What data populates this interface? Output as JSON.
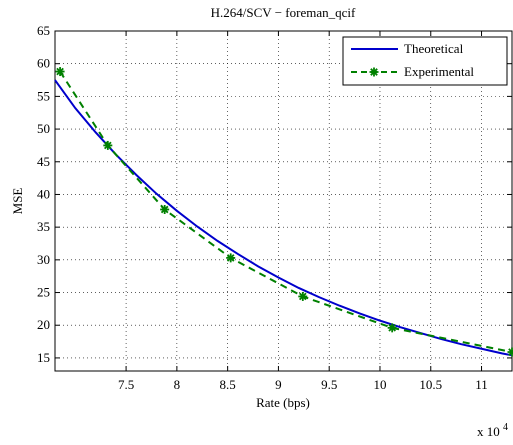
{
  "chart_data": {
    "type": "line",
    "title": "H.264/SCV − foreman_qcif",
    "xlabel": "Rate (bps)",
    "ylabel": "MSE",
    "x_multiplier_label": "x 10",
    "x_multiplier_exponent": "4",
    "xlim": [
      6.8,
      11.3
    ],
    "ylim": [
      13,
      65
    ],
    "x_ticks": [
      7.5,
      8,
      8.5,
      9,
      9.5,
      10,
      10.5,
      11
    ],
    "x_tick_labels": [
      "7.5",
      "8",
      "8.5",
      "9",
      "9.5",
      "10",
      "10.5",
      "11"
    ],
    "y_ticks": [
      15,
      20,
      25,
      30,
      35,
      40,
      45,
      50,
      55,
      60,
      65
    ],
    "y_tick_labels": [
      "15",
      "20",
      "25",
      "30",
      "35",
      "40",
      "45",
      "50",
      "55",
      "60",
      "65"
    ],
    "grid": true,
    "legend_position": "top-right",
    "series": [
      {
        "name": "Theoretical",
        "color": "#0000cc",
        "style": "solid",
        "x": [
          6.8,
          7.0,
          7.2,
          7.4,
          7.6,
          7.8,
          8.0,
          8.2,
          8.4,
          8.6,
          8.8,
          9.0,
          9.2,
          9.4,
          9.6,
          9.8,
          10.0,
          10.2,
          10.4,
          10.6,
          10.8,
          11.0,
          11.2,
          11.3
        ],
        "y": [
          57.5,
          53.2,
          49.5,
          46.1,
          43.0,
          40.1,
          37.5,
          35.1,
          32.9,
          30.9,
          29.0,
          27.3,
          25.7,
          24.3,
          23.0,
          21.8,
          20.7,
          19.7,
          18.8,
          17.9,
          17.1,
          16.4,
          15.7,
          15.4
        ]
      },
      {
        "name": "Experimental",
        "color": "#008000",
        "style": "dashed",
        "marker": "asterisk",
        "x": [
          6.85,
          7.32,
          7.88,
          8.53,
          9.24,
          10.12,
          11.3
        ],
        "y": [
          58.8,
          47.5,
          37.7,
          30.3,
          24.4,
          19.6,
          15.9
        ]
      }
    ]
  }
}
